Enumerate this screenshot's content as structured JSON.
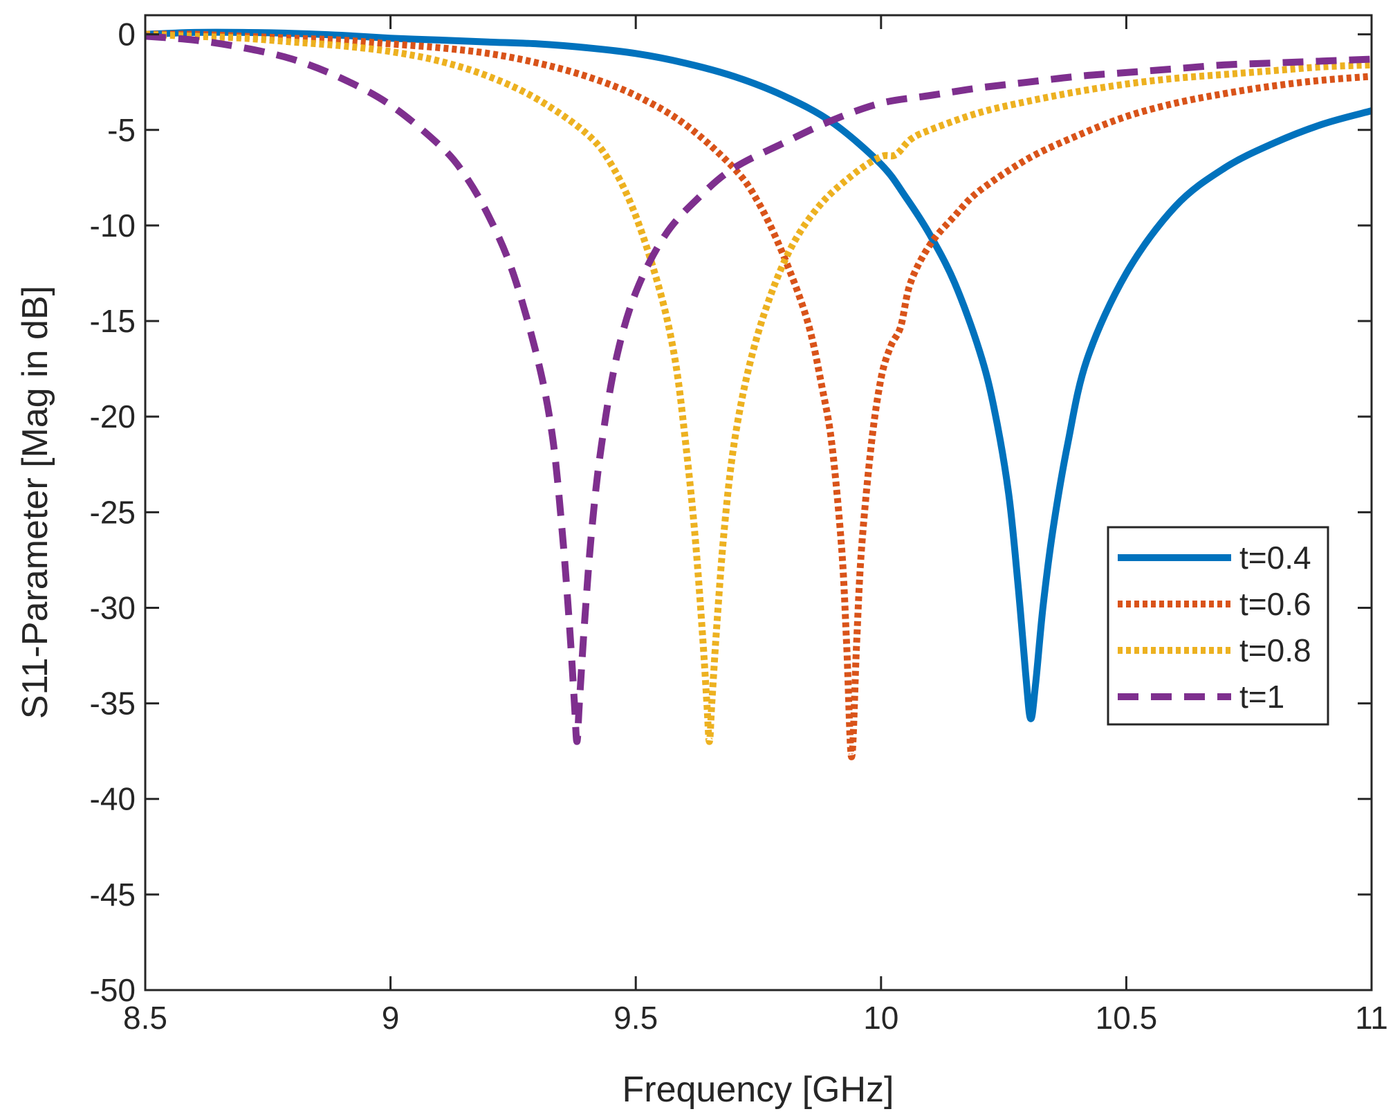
{
  "chart_data": {
    "type": "line",
    "title": "",
    "xlabel": "Frequency [GHz]",
    "ylabel": "S11-Parameter [Mag in dB]",
    "xlim": [
      8.5,
      11
    ],
    "ylim": [
      -50,
      1
    ],
    "xticks": [
      8.5,
      9,
      9.5,
      10,
      10.5,
      11
    ],
    "xtick_labels": [
      "8.5",
      "9",
      "9.5",
      "10",
      "10.5",
      "11"
    ],
    "yticks": [
      0,
      -5,
      -10,
      -15,
      -20,
      -25,
      -30,
      -35,
      -40,
      -45,
      -50
    ],
    "ytick_labels": [
      "0",
      "-5",
      "-10",
      "-15",
      "-20",
      "-25",
      "-30",
      "-35",
      "-40",
      "-45",
      "-50"
    ],
    "legend_position": "center-right",
    "grid": false,
    "series": [
      {
        "name": "t=0.4",
        "color": "#0072BD",
        "style": "solid",
        "points": [
          [
            8.5,
            0
          ],
          [
            8.6,
            0.1
          ],
          [
            8.7,
            0.1
          ],
          [
            8.8,
            0.05
          ],
          [
            8.9,
            -0.05
          ],
          [
            9.0,
            -0.2
          ],
          [
            9.1,
            -0.3
          ],
          [
            9.2,
            -0.4
          ],
          [
            9.3,
            -0.5
          ],
          [
            9.4,
            -0.7
          ],
          [
            9.5,
            -1.0
          ],
          [
            9.6,
            -1.5
          ],
          [
            9.7,
            -2.2
          ],
          [
            9.8,
            -3.2
          ],
          [
            9.9,
            -4.6
          ],
          [
            10.0,
            -6.8
          ],
          [
            10.05,
            -8.5
          ],
          [
            10.1,
            -10.5
          ],
          [
            10.15,
            -13.0
          ],
          [
            10.2,
            -16.5
          ],
          [
            10.23,
            -19.5
          ],
          [
            10.26,
            -24.0
          ],
          [
            10.28,
            -29.0
          ],
          [
            10.295,
            -33.5
          ],
          [
            10.305,
            -35.8
          ],
          [
            10.315,
            -34.0
          ],
          [
            10.33,
            -30.0
          ],
          [
            10.35,
            -26.0
          ],
          [
            10.38,
            -21.5
          ],
          [
            10.42,
            -17.0
          ],
          [
            10.5,
            -12.5
          ],
          [
            10.6,
            -9.0
          ],
          [
            10.7,
            -7.0
          ],
          [
            10.8,
            -5.7
          ],
          [
            10.9,
            -4.7
          ],
          [
            11.0,
            -4.0
          ]
        ]
      },
      {
        "name": "t=0.6",
        "color": "#D95319",
        "style": "dotted",
        "points": [
          [
            8.5,
            0
          ],
          [
            8.6,
            0
          ],
          [
            8.7,
            -0.1
          ],
          [
            8.8,
            -0.2
          ],
          [
            8.9,
            -0.3
          ],
          [
            9.0,
            -0.5
          ],
          [
            9.1,
            -0.7
          ],
          [
            9.2,
            -1.0
          ],
          [
            9.3,
            -1.5
          ],
          [
            9.4,
            -2.2
          ],
          [
            9.5,
            -3.2
          ],
          [
            9.6,
            -4.7
          ],
          [
            9.7,
            -7.0
          ],
          [
            9.75,
            -8.8
          ],
          [
            9.8,
            -11.5
          ],
          [
            9.85,
            -15.0
          ],
          [
            9.88,
            -18.5
          ],
          [
            9.9,
            -21.5
          ],
          [
            9.92,
            -27.0
          ],
          [
            9.93,
            -32.0
          ],
          [
            9.94,
            -37.8
          ],
          [
            9.95,
            -32.0
          ],
          [
            9.96,
            -27.0
          ],
          [
            9.98,
            -21.5
          ],
          [
            10.0,
            -18.0
          ],
          [
            10.02,
            -16.3
          ],
          [
            10.04,
            -15.3
          ],
          [
            10.06,
            -13.0
          ],
          [
            10.1,
            -11.0
          ],
          [
            10.15,
            -9.5
          ],
          [
            10.2,
            -8.2
          ],
          [
            10.3,
            -6.5
          ],
          [
            10.4,
            -5.3
          ],
          [
            10.5,
            -4.3
          ],
          [
            10.6,
            -3.6
          ],
          [
            10.7,
            -3.1
          ],
          [
            10.8,
            -2.7
          ],
          [
            10.9,
            -2.4
          ],
          [
            11.0,
            -2.2
          ]
        ]
      },
      {
        "name": "t=0.8",
        "color": "#EDB120",
        "style": "dotted",
        "points": [
          [
            8.5,
            0
          ],
          [
            8.6,
            -0.1
          ],
          [
            8.7,
            -0.2
          ],
          [
            8.8,
            -0.4
          ],
          [
            8.9,
            -0.6
          ],
          [
            9.0,
            -0.9
          ],
          [
            9.1,
            -1.4
          ],
          [
            9.2,
            -2.2
          ],
          [
            9.3,
            -3.4
          ],
          [
            9.4,
            -5.2
          ],
          [
            9.45,
            -6.8
          ],
          [
            9.5,
            -9.5
          ],
          [
            9.55,
            -13.5
          ],
          [
            9.58,
            -17.0
          ],
          [
            9.6,
            -21.0
          ],
          [
            9.62,
            -26.0
          ],
          [
            9.635,
            -31.0
          ],
          [
            9.645,
            -35.0
          ],
          [
            9.65,
            -37.0
          ],
          [
            9.655,
            -35.0
          ],
          [
            9.665,
            -31.0
          ],
          [
            9.68,
            -26.0
          ],
          [
            9.7,
            -21.5
          ],
          [
            9.73,
            -17.5
          ],
          [
            9.77,
            -14.0
          ],
          [
            9.82,
            -11.0
          ],
          [
            9.88,
            -8.8
          ],
          [
            9.95,
            -7.2
          ],
          [
            10.0,
            -6.4
          ],
          [
            10.03,
            -6.3
          ],
          [
            10.06,
            -5.5
          ],
          [
            10.1,
            -5.0
          ],
          [
            10.2,
            -4.1
          ],
          [
            10.3,
            -3.5
          ],
          [
            10.4,
            -3.0
          ],
          [
            10.5,
            -2.6
          ],
          [
            10.6,
            -2.3
          ],
          [
            10.7,
            -2.1
          ],
          [
            10.8,
            -1.9
          ],
          [
            10.9,
            -1.7
          ],
          [
            11.0,
            -1.6
          ]
        ]
      },
      {
        "name": "t=1",
        "color": "#7E2F8E",
        "style": "dashed",
        "points": [
          [
            8.5,
            -0.1
          ],
          [
            8.6,
            -0.3
          ],
          [
            8.7,
            -0.7
          ],
          [
            8.8,
            -1.3
          ],
          [
            8.9,
            -2.3
          ],
          [
            9.0,
            -3.7
          ],
          [
            9.1,
            -5.8
          ],
          [
            9.15,
            -7.3
          ],
          [
            9.2,
            -9.5
          ],
          [
            9.25,
            -12.5
          ],
          [
            9.3,
            -17.0
          ],
          [
            9.33,
            -21.0
          ],
          [
            9.35,
            -26.0
          ],
          [
            9.365,
            -31.0
          ],
          [
            9.375,
            -35.0
          ],
          [
            9.38,
            -37.0
          ],
          [
            9.385,
            -35.0
          ],
          [
            9.395,
            -31.0
          ],
          [
            9.41,
            -26.0
          ],
          [
            9.43,
            -21.5
          ],
          [
            9.46,
            -17.0
          ],
          [
            9.5,
            -13.5
          ],
          [
            9.56,
            -10.5
          ],
          [
            9.63,
            -8.5
          ],
          [
            9.7,
            -7.0
          ],
          [
            9.8,
            -5.7
          ],
          [
            9.9,
            -4.5
          ],
          [
            10.0,
            -3.6
          ],
          [
            10.1,
            -3.2
          ],
          [
            10.2,
            -2.8
          ],
          [
            10.3,
            -2.5
          ],
          [
            10.4,
            -2.2
          ],
          [
            10.5,
            -2.0
          ],
          [
            10.6,
            -1.8
          ],
          [
            10.7,
            -1.6
          ],
          [
            10.8,
            -1.5
          ],
          [
            10.9,
            -1.4
          ],
          [
            11.0,
            -1.3
          ]
        ]
      }
    ]
  }
}
